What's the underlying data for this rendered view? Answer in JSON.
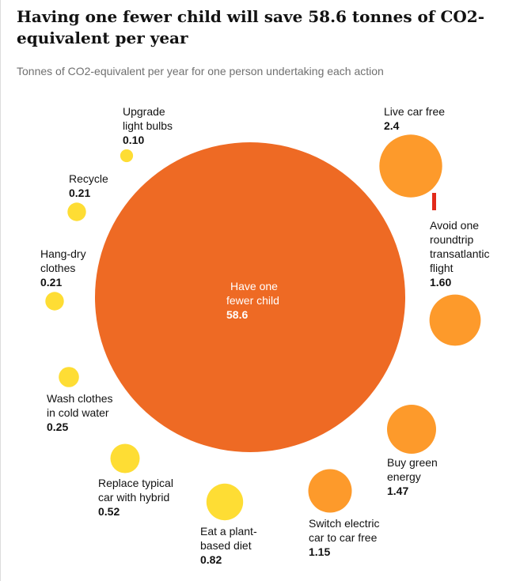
{
  "header": {
    "title": "Having one fewer child will save 58.6 tonnes of CO2-equivalent per year",
    "subtitle": "Tonnes of CO2-equivalent per year for one person undertaking each action"
  },
  "colors": {
    "big": "#ee6a24",
    "high": "#fd9a2b",
    "low": "#fedd34",
    "marker": "#e22a1a"
  },
  "chart_data": {
    "type": "bubble",
    "title": "Having one fewer child will save 58.6 tonnes of CO2-equivalent per year",
    "subtitle": "Tonnes of CO2-equivalent per year for one person undertaking each action",
    "items": [
      {
        "label_lines": [
          "Have one",
          "fewer child"
        ],
        "value": 58.6,
        "value_label": "58.6",
        "tier": "big"
      },
      {
        "label_lines": [
          "Live car free"
        ],
        "value": 2.4,
        "value_label": "2.4",
        "tier": "high"
      },
      {
        "label_lines": [
          "Avoid one",
          "roundtrip",
          "transatlantic",
          "flight"
        ],
        "value": 1.6,
        "value_label": "1.60",
        "tier": "high"
      },
      {
        "label_lines": [
          "Buy green",
          "energy"
        ],
        "value": 1.47,
        "value_label": "1.47",
        "tier": "high"
      },
      {
        "label_lines": [
          "Switch electric",
          "car to car free"
        ],
        "value": 1.15,
        "value_label": "1.15",
        "tier": "high"
      },
      {
        "label_lines": [
          "Eat a plant-",
          "based diet"
        ],
        "value": 0.82,
        "value_label": "0.82",
        "tier": "low"
      },
      {
        "label_lines": [
          "Replace typical",
          "car with hybrid"
        ],
        "value": 0.52,
        "value_label": "0.52",
        "tier": "low"
      },
      {
        "label_lines": [
          "Wash clothes",
          "in cold water"
        ],
        "value": 0.25,
        "value_label": "0.25",
        "tier": "low"
      },
      {
        "label_lines": [
          "Hang-dry",
          "clothes"
        ],
        "value": 0.21,
        "value_label": "0.21",
        "tier": "low"
      },
      {
        "label_lines": [
          "Recycle"
        ],
        "value": 0.21,
        "value_label": "0.21",
        "tier": "low"
      },
      {
        "label_lines": [
          "Upgrade",
          "light bulbs"
        ],
        "value": 0.1,
        "value_label": "0.10",
        "tier": "low"
      }
    ]
  }
}
